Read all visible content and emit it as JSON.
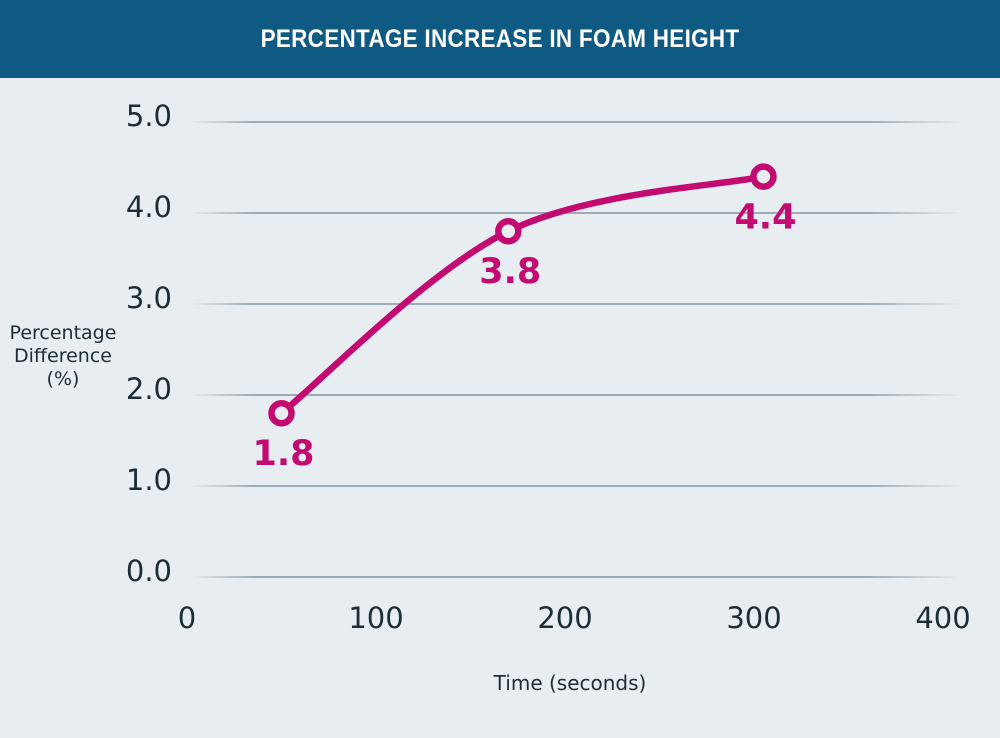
{
  "header": {
    "title": "PERCENTAGE INCREASE IN FOAM HEIGHT"
  },
  "colors": {
    "header_bg": "#0e5a82",
    "page_bg": "#e7edf1",
    "accent": "#c20a70",
    "gridline": "#9aa9b4",
    "text": "#1d2d35"
  },
  "chart_data": {
    "type": "line",
    "title": "PERCENTAGE INCREASE IN FOAM HEIGHT",
    "series": [
      {
        "name": "Percentage increase in foam height",
        "x": [
          50,
          170,
          305
        ],
        "y": [
          1.8,
          3.8,
          4.4
        ],
        "point_labels": [
          "1.8",
          "3.8",
          "4.4"
        ]
      }
    ],
    "xlabel": "Time (seconds)",
    "ylabel": "Percentage Difference (%)",
    "ylabel_lines": [
      "Percentage",
      "Difference",
      "(%)"
    ],
    "x_ticks": [
      "0",
      "100",
      "200",
      "300",
      "400"
    ],
    "y_ticks": [
      "5.0",
      "4.0",
      "3.0",
      "2.0",
      "1.0",
      "0.0"
    ],
    "xlim": [
      0,
      410
    ],
    "ylim": [
      0,
      5
    ],
    "grid": "horizontal",
    "legend": "none",
    "marker": "open-circle",
    "line_color": "#c20a70"
  }
}
